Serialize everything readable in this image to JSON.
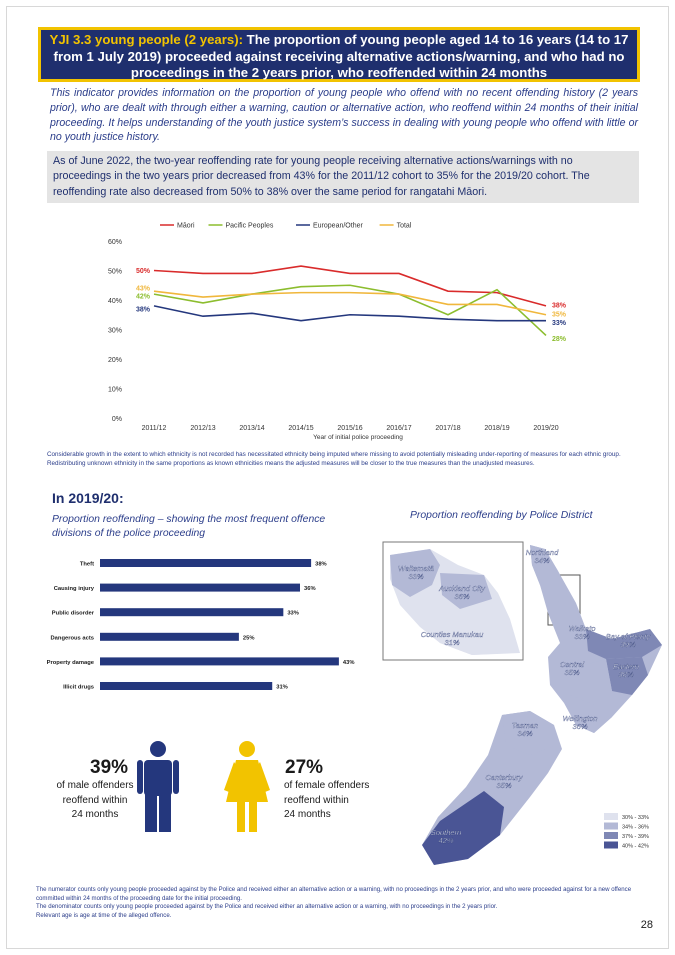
{
  "header": {
    "code": "YJI 3.3 young people (2 years):",
    "title": " The proportion of young people aged 14 to 16 years (14 to 17 from 1 July 2019) proceeded against receiving alternative actions/warning, and who had no proceedings in the 2 years prior, who reoffended within 24 months"
  },
  "intro": "This indicator provides information on the proportion of young people who offend with no recent offending history (2 years prior), who are dealt with through either a warning, caution or alternative action, who reoffend within 24 months of their initial proceeding. It helps understanding of the youth justice system’s success in dealing with young people who offend with little or no youth justice history.",
  "summary": "As of June 2022, the two-year reoffending rate for young people receiving alternative actions/warnings with no proceedings in the two years prior decreased from 43% for the 2011/12 cohort to 35% for the 2019/20 cohort. The reoffending rate also decreased from 50% to 38% over the same period for rangatahi Māori.",
  "chart_data": [
    {
      "type": "line",
      "title": "",
      "xlabel": "Year of initial police proceeding",
      "ylabel": "",
      "ylim": [
        0,
        60
      ],
      "yticks": [
        "0%",
        "10%",
        "20%",
        "30%",
        "40%",
        "50%",
        "60%"
      ],
      "categories": [
        "2011/12",
        "2012/13",
        "2013/14",
        "2014/15",
        "2015/16",
        "2016/17",
        "2017/18",
        "2018/19",
        "2019/20"
      ],
      "legend_position": "top",
      "series": [
        {
          "name": "Māori",
          "color": "#d92b2b",
          "values": [
            50,
            49,
            49,
            51.5,
            49,
            49,
            43,
            42.5,
            38
          ],
          "start_label": "50%",
          "end_label": "38%"
        },
        {
          "name": "Pacific Peoples",
          "color": "#8cbd2e",
          "values": [
            42,
            39,
            42,
            44.5,
            45,
            42,
            35,
            43.5,
            28
          ],
          "start_label": "42%",
          "end_label": "28%"
        },
        {
          "name": "European/Other",
          "color": "#24377d",
          "values": [
            38,
            34.5,
            35.5,
            33,
            35,
            34.5,
            33.5,
            33,
            33
          ],
          "start_label": "38%",
          "end_label": "33%"
        },
        {
          "name": "Total",
          "color": "#f0b73c",
          "values": [
            43,
            41,
            42,
            42.5,
            42.5,
            42,
            38.5,
            38.5,
            35
          ],
          "start_label": "43%",
          "end_label": "35%"
        }
      ]
    },
    {
      "type": "bar",
      "orientation": "horizontal",
      "title": "Proportion reoffending – showing the most frequent offence divisions of the police proceeding",
      "categories": [
        "Theft",
        "Causing injury",
        "Public disorder",
        "Dangerous acts",
        "Property damage",
        "Illicit drugs"
      ],
      "values": [
        38,
        36,
        33,
        25,
        43,
        31
      ],
      "value_labels": [
        "38%",
        "36%",
        "33%",
        "25%",
        "43%",
        "31%"
      ],
      "xlim": [
        0,
        45
      ],
      "color": "#24377d"
    }
  ],
  "note": "Considerable growth in the extent to which ethnicity is not recorded has necessitated ethnicity being imputed where missing to avoid potentially misleading under-reporting of measures for each ethnic group. Redistributing unknown ethnicity in the same proportions as known ethnicities means the adjusted measures will be closer to the true measures than the unadjusted measures.",
  "section": {
    "heading": "In 2019/20:",
    "left_subtitle": "Proportion reoffending – showing the most frequent offence divisions of the police proceeding",
    "right_subtitle": "Proportion reoffending by Police District"
  },
  "gender": {
    "male": {
      "pct": "39%",
      "desc1": "of male offenders",
      "desc2": "reoffend within",
      "desc3": "24 months",
      "color": "#24377d"
    },
    "female": {
      "pct": "27%",
      "desc1": "of female offenders",
      "desc2": "reoffend within",
      "desc3": "24 months",
      "color": "#f2c300"
    }
  },
  "map": {
    "districts": [
      {
        "name": "Northland",
        "value": "34%"
      },
      {
        "name": "Waitematā",
        "value": "33%"
      },
      {
        "name": "Auckland City",
        "value": "36%"
      },
      {
        "name": "Counties Manukau",
        "value": "31%"
      },
      {
        "name": "Waikato",
        "value": "33%"
      },
      {
        "name": "Bay of Plenty",
        "value": "39%"
      },
      {
        "name": "Central",
        "value": "35%"
      },
      {
        "name": "Eastern",
        "value": "38%"
      },
      {
        "name": "Wellington",
        "value": "36%"
      },
      {
        "name": "Tasman",
        "value": "34%"
      },
      {
        "name": "Canterbury",
        "value": "35%"
      },
      {
        "name": "Southern",
        "value": "42%"
      }
    ],
    "legend": [
      {
        "label": "30% - 33%",
        "color": "#dfe2ee"
      },
      {
        "label": "34% - 36%",
        "color": "#b3b9d6"
      },
      {
        "label": "37% - 39%",
        "color": "#7f88b5"
      },
      {
        "label": "40% - 42%",
        "color": "#4a5595"
      }
    ]
  },
  "footnotes": [
    "The numerator counts only young people proceeded against by the Police and received either an alternative action or a warning, with no proceedings in the 2 years prior, and who were proceeded against for a new offence committed within 24 months of the proceeding date for the initial proceeding.",
    "The denominator counts only young people proceeded against by the Police and received either an alternative action or a warning, with no proceedings in the 2 years prior.",
    "Relevant age is age at time of the alleged offence."
  ],
  "page_number": "28"
}
